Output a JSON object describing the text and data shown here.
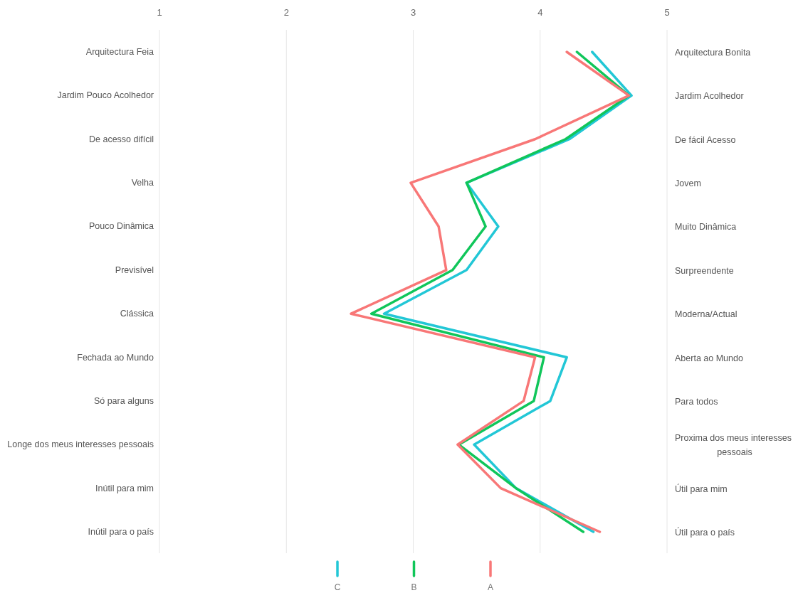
{
  "chart_data": {
    "type": "line",
    "orientation": "horizontal",
    "categories": [
      "Arquitectura Feia",
      "Jardim Pouco Acolhedor",
      "De acesso difícil",
      "Velha",
      "Pouco Dinâmica",
      "Previsível",
      "Clássica",
      "Fechada ao Mundo",
      "Só para alguns",
      "Longe dos meus interesses pessoais",
      "Inútil para mim",
      "Inútil para o país"
    ],
    "y2_categories": [
      "Arquitectura Bonita",
      "Jardim Acolhedor",
      "De fácil Acesso",
      "Jovem",
      "Muito Dinâmica",
      "Surpreendente",
      "Moderna/Actual",
      "Aberta ao Mundo",
      "Para todos",
      "Proxima dos meus interesses pessoais",
      "Útil para mim",
      "Útil para o país"
    ],
    "xlim": [
      1,
      5
    ],
    "xticks": [
      1,
      2,
      3,
      4,
      5
    ],
    "grid": "x",
    "legend": "bottom",
    "series": [
      {
        "name": "C",
        "color": "#22c7d6",
        "values": [
          4.41,
          4.72,
          4.23,
          3.42,
          3.67,
          3.42,
          2.77,
          4.21,
          4.08,
          3.48,
          3.81,
          4.42
        ]
      },
      {
        "name": "B",
        "color": "#10c65a",
        "values": [
          4.29,
          4.7,
          4.2,
          3.42,
          3.57,
          3.31,
          2.67,
          4.03,
          3.95,
          3.36,
          3.81,
          4.34
        ]
      },
      {
        "name": "A",
        "color": "#f87777",
        "values": [
          4.21,
          4.7,
          3.96,
          2.98,
          3.2,
          3.26,
          2.51,
          3.96,
          3.87,
          3.35,
          3.69,
          4.47
        ]
      }
    ]
  }
}
